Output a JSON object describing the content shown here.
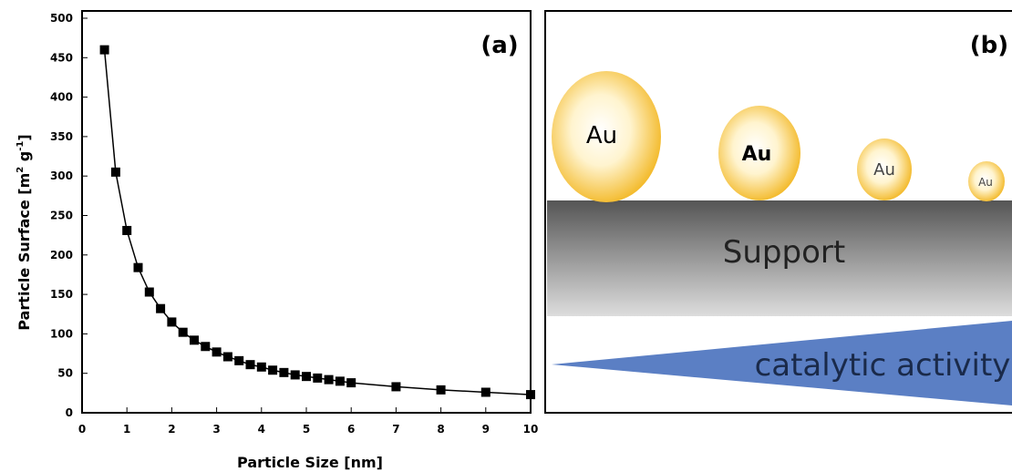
{
  "chart_data": {
    "type": "line",
    "panel_label": "(a)",
    "xlabel": "Particle Size [nm]",
    "ylabel": [
      "Particle Surface [m",
      "2",
      " g",
      "-1",
      "]"
    ],
    "x": [
      0.5,
      0.75,
      1,
      1.25,
      1.5,
      1.75,
      2,
      2.25,
      2.5,
      2.75,
      3,
      3.25,
      3.5,
      3.75,
      4,
      4.25,
      4.5,
      4.75,
      5,
      5.25,
      5.5,
      5.75,
      6,
      7,
      8,
      9,
      10
    ],
    "values": [
      460,
      305,
      231,
      184,
      153,
      132,
      115,
      102,
      92,
      84,
      77,
      71,
      66,
      61,
      58,
      54,
      51,
      48,
      46,
      44,
      42,
      40,
      38,
      33,
      29,
      26,
      23
    ],
    "color": "#000000",
    "xlim": [
      0,
      10
    ],
    "xticks": [
      0,
      1,
      2,
      3,
      4,
      5,
      6,
      7,
      8,
      9,
      10
    ],
    "ylim": [
      0,
      500
    ],
    "yticks": [
      0,
      50,
      100,
      150,
      200,
      250,
      300,
      350,
      400,
      450,
      500
    ]
  },
  "diagram": {
    "panel_label": "(b)",
    "particles": [
      "Au",
      "Au",
      "Au",
      "Au"
    ],
    "support": "Support",
    "activity": "catalytic activity"
  }
}
